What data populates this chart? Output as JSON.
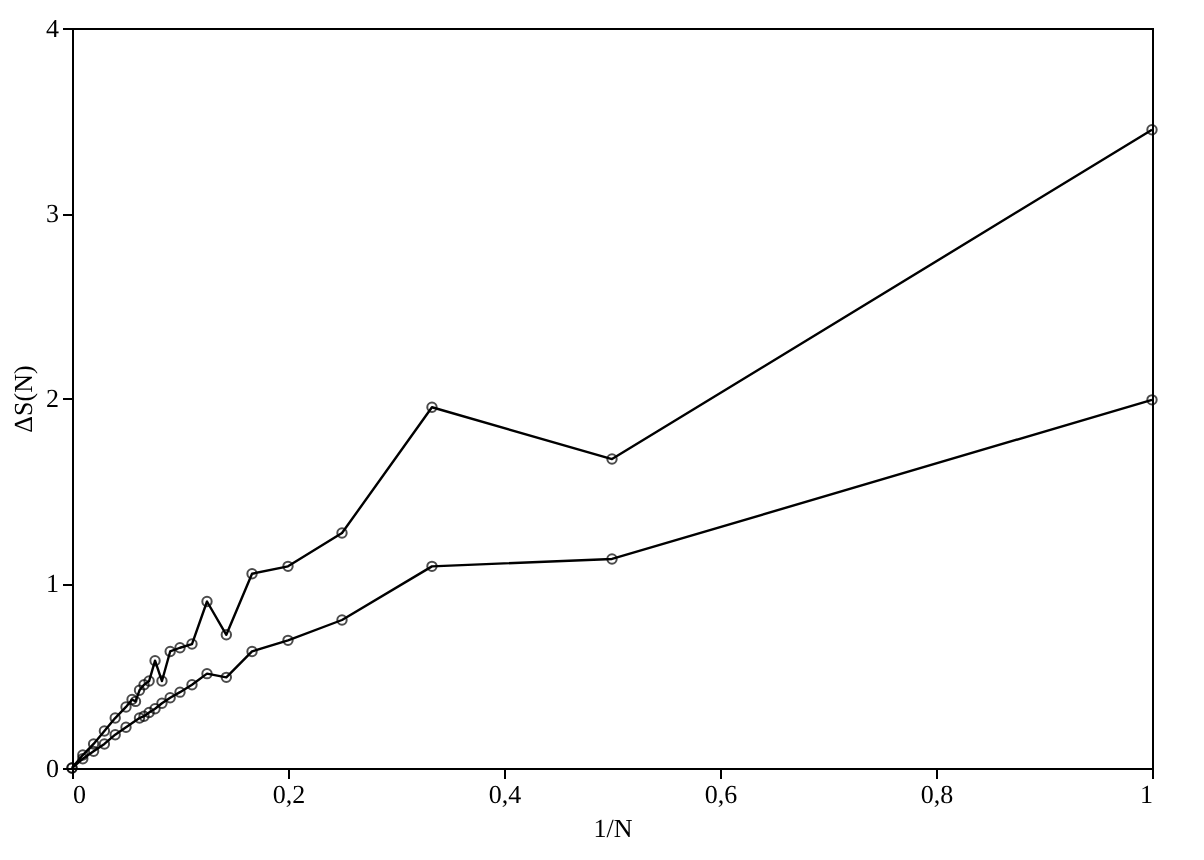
{
  "chart_data": {
    "type": "line",
    "xlabel": "1/N",
    "ylabel": "ΔS(N)",
    "xlim": [
      0,
      1
    ],
    "ylim": [
      0,
      4
    ],
    "xticks": [
      0,
      {
        "value": 0.2,
        "label": "0,2"
      },
      {
        "value": 0.4,
        "label": "0,4"
      },
      {
        "value": 0.6,
        "label": "0,6"
      },
      {
        "value": 0.8,
        "label": "0,8"
      },
      1
    ],
    "yticks": [
      0,
      1,
      2,
      3,
      4
    ],
    "marker": "circle",
    "grid": false,
    "series": [
      {
        "color": "#000000",
        "x": [
          1,
          0.5,
          0.3333,
          0.25,
          0.2,
          0.1667,
          0.1429,
          0.125,
          0.1111,
          0.1,
          0.0909,
          0.0833,
          0.0769,
          0.0714,
          0.0667,
          0.0625,
          0.0588,
          0.0556,
          0.05,
          0.04,
          0.03,
          0.02,
          0.01,
          0
        ],
        "values": [
          3.45,
          1.67,
          1.95,
          1.27,
          1.09,
          1.05,
          0.72,
          0.9,
          0.67,
          0.65,
          0.63,
          0.47,
          0.58,
          0.47,
          0.45,
          0.42,
          0.36,
          0.37,
          0.33,
          0.27,
          0.2,
          0.13,
          0.07,
          0
        ]
      },
      {
        "color": "#000000",
        "x": [
          1,
          0.5,
          0.3333,
          0.25,
          0.2,
          0.1667,
          0.1429,
          0.125,
          0.1111,
          0.1,
          0.0909,
          0.0833,
          0.0769,
          0.0714,
          0.0667,
          0.0625,
          0.05,
          0.04,
          0.03,
          0.02,
          0.01,
          0
        ],
        "values": [
          1.99,
          1.13,
          1.09,
          0.8,
          0.69,
          0.63,
          0.49,
          0.51,
          0.45,
          0.41,
          0.38,
          0.35,
          0.32,
          0.3,
          0.28,
          0.27,
          0.22,
          0.18,
          0.13,
          0.09,
          0.05,
          0
        ]
      }
    ]
  }
}
